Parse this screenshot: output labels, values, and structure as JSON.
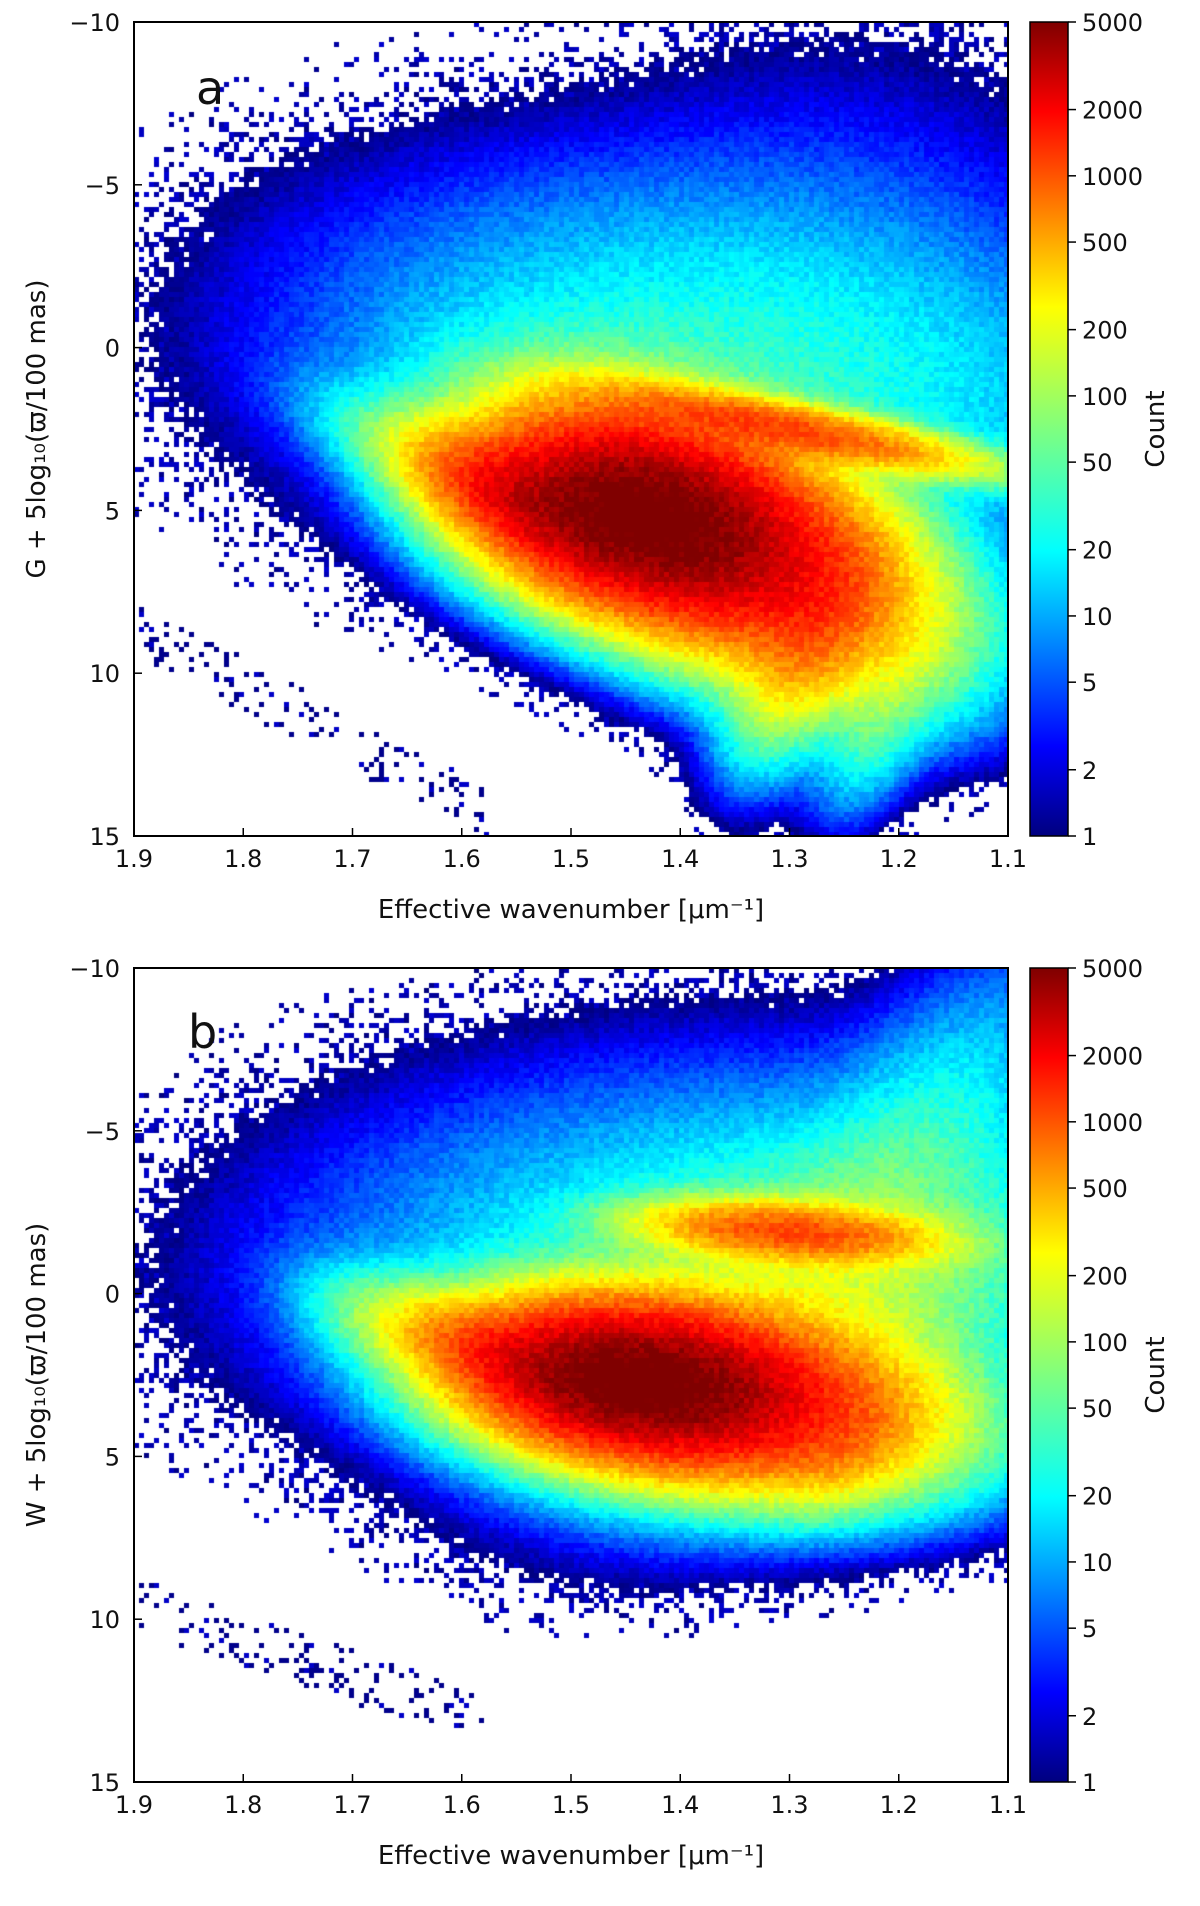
{
  "chart_data": [
    {
      "type": "heatmap",
      "panel_letter": "a",
      "xlabel": "Effective wavenumber [μm⁻¹]",
      "ylabel": "G + 5log₁₀(ϖ/100 mas)",
      "x_ticks": [
        "1.9",
        "1.8",
        "1.7",
        "1.6",
        "1.5",
        "1.4",
        "1.3",
        "1.2",
        "1.1"
      ],
      "y_ticks": [
        "−10",
        "−5",
        "0",
        "5",
        "10",
        "15"
      ],
      "xlim": [
        1.9,
        1.1
      ],
      "ylim": [
        15,
        -10
      ],
      "colorbar": {
        "label": "Count",
        "scale": "log",
        "range": [
          1,
          5000
        ],
        "ticks": [
          "5000",
          "2000",
          "1000",
          "500",
          "200",
          "100",
          "50",
          "20",
          "10",
          "5",
          "2",
          "1"
        ],
        "colormap": "jet"
      },
      "density_components": [
        {
          "x": 1.44,
          "y": 5.2,
          "sx": 0.07,
          "sy": 1.4,
          "rho": -0.3,
          "peak": 5000
        },
        {
          "x": 1.37,
          "y": 5.8,
          "sx": 0.09,
          "sy": 2.0,
          "rho": -0.5,
          "peak": 2200
        },
        {
          "x": 1.55,
          "y": 4.6,
          "sx": 0.05,
          "sy": 1.0,
          "rho": -0.6,
          "peak": 1200
        },
        {
          "x": 1.3,
          "y": 2.5,
          "sx": 0.09,
          "sy": 0.7,
          "rho": -0.8,
          "peak": 900
        },
        {
          "x": 1.28,
          "y": 8.8,
          "sx": 0.035,
          "sy": 1.8,
          "rho": 0.55,
          "peak": 300
        },
        {
          "x": 1.22,
          "y": 11.5,
          "sx": 0.03,
          "sy": 1.5,
          "rho": 0.5,
          "peak": 40
        },
        {
          "x": 1.35,
          "y": 1.0,
          "sx": 0.2,
          "sy": 3.2,
          "rho": -0.2,
          "peak": 35
        },
        {
          "x": 1.25,
          "y": -4.0,
          "sx": 0.14,
          "sy": 3.5,
          "rho": 0.0,
          "peak": 3
        },
        {
          "x": 1.62,
          "y": 3.5,
          "sx": 0.06,
          "sy": 1.2,
          "rho": -0.7,
          "peak": 60
        }
      ],
      "sparse_sequence": {
        "x_start": 1.9,
        "x_end": 1.58,
        "y_start": 8.5,
        "y_end": 14.2
      }
    },
    {
      "type": "heatmap",
      "panel_letter": "b",
      "xlabel": "Effective wavenumber [μm⁻¹]",
      "ylabel": "W + 5log₁₀(ϖ/100 mas)",
      "x_ticks": [
        "1.9",
        "1.8",
        "1.7",
        "1.6",
        "1.5",
        "1.4",
        "1.3",
        "1.2",
        "1.1"
      ],
      "y_ticks": [
        "−10",
        "−5",
        "0",
        "5",
        "10",
        "15"
      ],
      "xlim": [
        1.9,
        1.1
      ],
      "ylim": [
        15,
        -10
      ],
      "colorbar": {
        "label": "Count",
        "scale": "log",
        "range": [
          1,
          5000
        ],
        "ticks": [
          "5000",
          "2000",
          "1000",
          "500",
          "200",
          "100",
          "50",
          "20",
          "10",
          "5",
          "2",
          "1"
        ],
        "colormap": "jet"
      },
      "density_components": [
        {
          "x": 1.44,
          "y": 2.7,
          "sx": 0.07,
          "sy": 1.1,
          "rho": -0.2,
          "peak": 5000
        },
        {
          "x": 1.38,
          "y": 3.0,
          "sx": 0.1,
          "sy": 1.4,
          "rho": -0.3,
          "peak": 2000
        },
        {
          "x": 1.55,
          "y": 2.0,
          "sx": 0.06,
          "sy": 0.9,
          "rho": -0.6,
          "peak": 800
        },
        {
          "x": 1.3,
          "y": -1.9,
          "sx": 0.07,
          "sy": 0.5,
          "rho": -0.3,
          "peak": 900
        },
        {
          "x": 1.3,
          "y": 1.0,
          "sx": 0.12,
          "sy": 2.6,
          "rho": 0.3,
          "peak": 120
        },
        {
          "x": 1.25,
          "y": 4.6,
          "sx": 0.03,
          "sy": 1.0,
          "rho": 0.3,
          "peak": 150
        },
        {
          "x": 1.2,
          "y": -3.5,
          "sx": 0.08,
          "sy": 3.5,
          "rho": 0.7,
          "peak": 30
        },
        {
          "x": 1.38,
          "y": -1.5,
          "sx": 0.2,
          "sy": 3.0,
          "rho": 0.1,
          "peak": 25
        },
        {
          "x": 1.65,
          "y": 1.0,
          "sx": 0.05,
          "sy": 1.0,
          "rho": -0.5,
          "peak": 50
        }
      ],
      "sparse_sequence": {
        "x_start": 1.9,
        "x_end": 1.58,
        "y_start": 9.5,
        "y_end": 13.0
      }
    }
  ]
}
